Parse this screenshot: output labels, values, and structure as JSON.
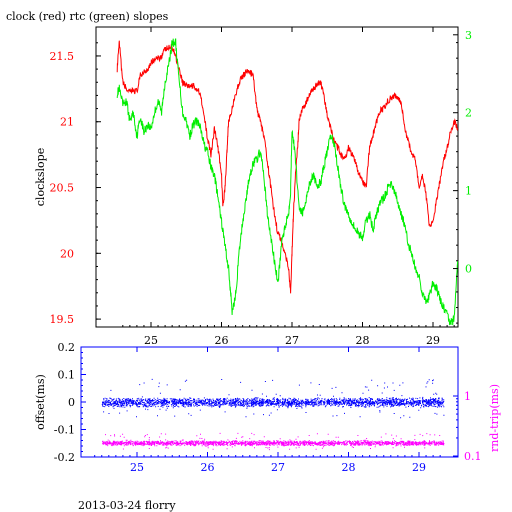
{
  "footer": "2013-03-24 florry",
  "chart_data": [
    {
      "type": "line",
      "title": "clock (red) rtc (green) slopes",
      "xlabel": "",
      "ylabel": "clockslope",
      "y2label": "",
      "xlim": [
        24.5,
        29.4
      ],
      "ylim": [
        19.44,
        21.72
      ],
      "y2lim": [
        -0.75,
        3.1
      ],
      "x_ticks": [
        "25",
        "26",
        "27",
        "28",
        "29"
      ],
      "y_ticks": [
        "19.5",
        "20",
        "20.5",
        "21",
        "21.5"
      ],
      "y2_ticks": [
        "0",
        "1",
        "2",
        "3"
      ],
      "grid": false,
      "colors": {
        "clock": "#ff0000",
        "rtc": "#00ee00",
        "axes": "#000000",
        "x_ticks": "#000000"
      },
      "series": [
        {
          "axis": "left",
          "color": "#ff0000",
          "x": [
            24.52,
            24.55,
            24.6,
            24.65,
            24.7,
            24.75,
            24.8,
            24.85,
            24.9,
            24.95,
            25.0,
            25.05,
            25.1,
            25.15,
            25.2,
            25.25,
            25.3,
            25.35,
            25.4,
            25.45,
            25.5,
            25.55,
            25.6,
            25.65,
            25.7,
            25.75,
            25.8,
            25.85,
            25.9,
            25.95,
            26.0,
            26.02,
            26.05,
            26.08,
            26.1,
            26.15,
            26.2,
            26.25,
            26.3,
            26.35,
            26.4,
            26.45,
            26.5,
            26.55,
            26.6,
            26.65,
            26.7,
            26.75,
            26.8,
            26.85,
            26.9,
            26.95,
            26.98,
            27.0,
            27.02,
            27.05,
            27.08,
            27.1,
            27.15,
            27.2,
            27.25,
            27.3,
            27.35,
            27.4,
            27.45,
            27.5,
            27.55,
            27.6,
            27.65,
            27.7,
            27.75,
            27.8,
            27.85,
            27.9,
            27.95,
            28.0,
            28.05,
            28.1,
            28.15,
            28.2,
            28.25,
            28.3,
            28.35,
            28.4,
            28.45,
            28.5,
            28.55,
            28.6,
            28.65,
            28.7,
            28.75,
            28.8,
            28.85,
            28.9,
            28.95,
            29.0,
            29.05,
            29.1,
            29.15,
            29.2,
            29.25,
            29.3,
            29.35
          ],
          "y": [
            21.4,
            21.6,
            21.3,
            21.25,
            21.22,
            21.24,
            21.23,
            21.35,
            21.38,
            21.4,
            21.45,
            21.47,
            21.48,
            21.5,
            21.55,
            21.56,
            21.57,
            21.5,
            21.4,
            21.3,
            21.28,
            21.27,
            21.27,
            21.25,
            21.22,
            21.05,
            20.88,
            20.75,
            20.95,
            20.8,
            20.6,
            20.35,
            20.5,
            20.8,
            21.0,
            21.1,
            21.2,
            21.3,
            21.35,
            21.38,
            21.38,
            21.35,
            21.1,
            21.0,
            20.9,
            20.7,
            20.5,
            20.3,
            20.15,
            20.1,
            20.0,
            19.9,
            19.7,
            20.0,
            20.3,
            20.6,
            20.8,
            21.0,
            21.1,
            21.15,
            21.2,
            21.25,
            21.28,
            21.3,
            21.2,
            21.05,
            20.95,
            20.85,
            20.8,
            20.75,
            20.72,
            20.8,
            20.75,
            20.7,
            20.6,
            20.55,
            20.5,
            20.8,
            20.9,
            21.0,
            21.08,
            21.1,
            21.15,
            21.18,
            21.2,
            21.18,
            21.15,
            20.95,
            20.85,
            20.75,
            20.72,
            20.5,
            20.6,
            20.45,
            20.2,
            20.25,
            20.4,
            20.55,
            20.7,
            20.8,
            20.92,
            21.0,
            20.95
          ]
        },
        {
          "axis": "right",
          "color": "#00ee00",
          "x": [
            24.52,
            24.55,
            24.6,
            24.65,
            24.7,
            24.75,
            24.8,
            24.85,
            24.9,
            24.95,
            25.0,
            25.05,
            25.1,
            25.15,
            25.2,
            25.25,
            25.3,
            25.35,
            25.4,
            25.45,
            25.5,
            25.55,
            25.6,
            25.65,
            25.7,
            25.75,
            25.8,
            25.85,
            25.9,
            25.95,
            26.0,
            26.05,
            26.1,
            26.15,
            26.2,
            26.25,
            26.3,
            26.35,
            26.4,
            26.45,
            26.5,
            26.55,
            26.6,
            26.65,
            26.7,
            26.75,
            26.8,
            26.85,
            26.9,
            26.95,
            26.98,
            27.0,
            27.05,
            27.1,
            27.15,
            27.2,
            27.25,
            27.3,
            27.35,
            27.4,
            27.45,
            27.5,
            27.55,
            27.6,
            27.65,
            27.7,
            27.75,
            27.8,
            27.85,
            27.9,
            27.95,
            28.0,
            28.05,
            28.1,
            28.15,
            28.2,
            28.25,
            28.3,
            28.35,
            28.4,
            28.45,
            28.5,
            28.55,
            28.6,
            28.65,
            28.7,
            28.75,
            28.8,
            28.85,
            28.9,
            28.95,
            29.0,
            29.05,
            29.1,
            29.15,
            29.2,
            29.25,
            29.3,
            29.35
          ],
          "y": [
            2.25,
            2.3,
            2.1,
            2.15,
            1.9,
            2.0,
            1.7,
            1.95,
            1.75,
            1.85,
            1.8,
            2.0,
            2.15,
            2.0,
            2.4,
            2.6,
            2.9,
            2.9,
            2.4,
            2.0,
            1.9,
            1.7,
            1.85,
            1.9,
            1.8,
            1.6,
            1.5,
            1.3,
            1.2,
            0.9,
            0.6,
            0.3,
            0.0,
            -0.55,
            -0.35,
            0.2,
            0.6,
            0.9,
            1.2,
            1.35,
            1.4,
            1.5,
            1.2,
            0.7,
            0.4,
            0.1,
            -0.2,
            0.3,
            0.55,
            0.7,
            1.0,
            1.8,
            1.4,
            0.8,
            0.7,
            0.9,
            1.1,
            1.2,
            1.05,
            1.1,
            1.3,
            1.5,
            1.7,
            1.6,
            1.3,
            1.0,
            0.8,
            0.7,
            0.6,
            0.5,
            0.45,
            0.4,
            0.6,
            0.7,
            0.5,
            0.7,
            0.85,
            0.9,
            1.0,
            1.1,
            1.0,
            0.85,
            0.7,
            0.55,
            0.3,
            0.2,
            0.0,
            -0.1,
            -0.3,
            -0.45,
            -0.35,
            -0.2,
            -0.25,
            -0.4,
            -0.5,
            -0.6,
            -0.7,
            -0.65,
            0.1
          ]
        }
      ]
    },
    {
      "type": "scatter",
      "title": "",
      "xlabel": "",
      "ylabel": "offset(ms)",
      "y2label": "rnd-trip(ms)",
      "xlim": [
        24.5,
        29.4
      ],
      "ylim": [
        -0.2,
        0.2
      ],
      "y2_scale": "log",
      "x_ticks": [
        "25",
        "26",
        "27",
        "28",
        "29"
      ],
      "y_ticks": [
        "0.2",
        "0.1",
        "0",
        "-0.1",
        "-0.2"
      ],
      "y2_ticks": [
        "1",
        "0.1"
      ],
      "grid": false,
      "colors": {
        "offset": "#0000ff",
        "rnd_trip": "#ff00ff",
        "axes": "#0000ff",
        "x_ticks": "#0000ff"
      },
      "series": [
        {
          "name": "",
          "axis": "left",
          "color": "#0000ff",
          "x_range": [
            24.5,
            29.35
          ],
          "band_center": 0.0,
          "band_halfwidth": 0.018,
          "sparse_max": 0.07,
          "count": 2600
        },
        {
          "name": "",
          "axis": "right",
          "color": "#ff00ff",
          "x_range": [
            24.5,
            29.35
          ],
          "band_center_value": 0.0435,
          "band_center_y_equivalent": -0.148,
          "band_halfwidth": 0.01,
          "sparse_max": 0.03,
          "count": 2200
        }
      ]
    }
  ]
}
